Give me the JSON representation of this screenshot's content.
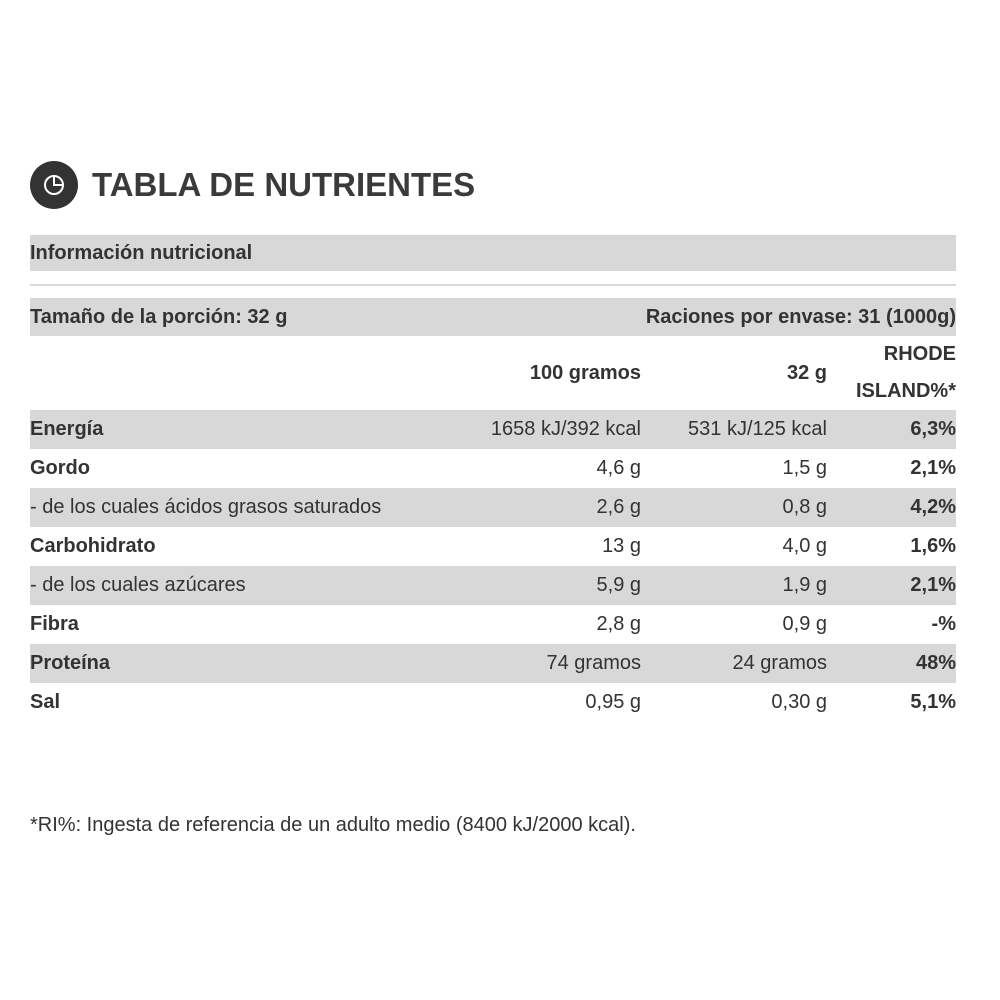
{
  "header": {
    "title": "TABLA DE NUTRIENTES"
  },
  "section_title": "Información nutricional",
  "serving": {
    "size": "Tamaño de la porción: 32 g",
    "per_package": "Raciones por envase: 31 (1000g)"
  },
  "table": {
    "columns": [
      "100 gramos",
      "32 g",
      "RHODE ISLAND%*"
    ],
    "rows": [
      [
        "Energía",
        "1658 kJ/392 kcal",
        "531 kJ/125 kcal",
        "6,3%"
      ],
      [
        "Gordo",
        "4,6 g",
        "1,5 g",
        "2,1%"
      ],
      [
        "- de los cuales ácidos grasos saturados",
        "2,6 g",
        "0,8 g",
        "4,2%"
      ],
      [
        "Carbohidrato",
        "13 g",
        "4,0 g",
        "1,6%"
      ],
      [
        "- de los cuales azúcares",
        "5,9 g",
        "1,9 g",
        "2,1%"
      ],
      [
        "Fibra",
        "2,8 g",
        "0,9 g",
        "-%"
      ],
      [
        "Proteína",
        "74 gramos",
        "24 gramos",
        "48%"
      ],
      [
        "Sal",
        "0,95 g",
        "0,30 g",
        "5,1%"
      ]
    ]
  },
  "footnote": "*RI%: Ingesta de referencia de un adulto medio (8400 kJ/2000 kcal)."
}
